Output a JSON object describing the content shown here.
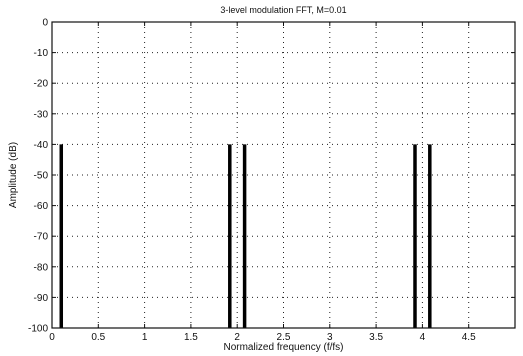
{
  "chart_data": {
    "type": "bar",
    "title": "3-level modulation FFT, M=0.01",
    "xlabel": "Normalized frequency (f/fs)",
    "ylabel": "Amplitude (dB)",
    "xlim": [
      0,
      5
    ],
    "ylim": [
      -100,
      0
    ],
    "grid": true,
    "xticks": [
      "0",
      "0.5",
      "1",
      "1.5",
      "2",
      "2.5",
      "3",
      "3.5",
      "4",
      "4.5"
    ],
    "yticks": [
      "0",
      "-10",
      "-20",
      "-30",
      "-40",
      "-50",
      "-60",
      "-70",
      "-80",
      "-90",
      "-100"
    ],
    "series": [
      {
        "x": [
          0.1,
          1.92,
          2.08,
          3.92,
          4.08
        ],
        "values": [
          -40,
          -40,
          -40,
          -40,
          -40
        ]
      }
    ]
  }
}
